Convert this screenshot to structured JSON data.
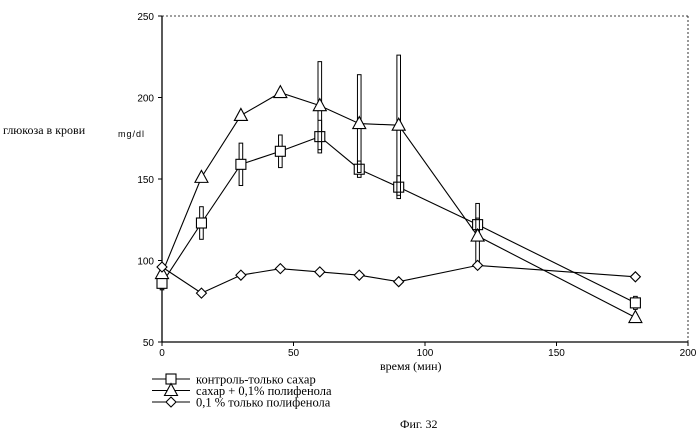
{
  "chart_data": {
    "type": "line",
    "title": "",
    "ylabel": "глюкоза в крови",
    "yunit": "mg/dl",
    "xlabel": "время (мин)",
    "xlim": [
      0,
      200
    ],
    "ylim": [
      50,
      250
    ],
    "xticks": [
      0,
      50,
      100,
      150,
      200
    ],
    "yticks": [
      50,
      100,
      150,
      200,
      250
    ],
    "grid": false,
    "legend_position": "bottom-left",
    "series": [
      {
        "name": "контроль-только сахар",
        "marker": "square",
        "x": [
          0,
          15,
          30,
          45,
          60,
          75,
          90,
          120,
          180
        ],
        "y": [
          86,
          123,
          159,
          167,
          176,
          156,
          145,
          122,
          74
        ],
        "err": [
          4,
          10,
          13,
          10,
          10,
          5,
          7,
          4,
          4
        ]
      },
      {
        "name": "сахар + 0,1% полифенола",
        "marker": "triangle",
        "x": [
          0,
          15,
          30,
          45,
          60,
          75,
          90,
          120,
          180
        ],
        "y": [
          92,
          151,
          189,
          203,
          195,
          184,
          183,
          115,
          65
        ],
        "err": [
          0,
          0,
          0,
          0,
          27,
          30,
          43,
          20,
          0
        ]
      },
      {
        "name": "0,1 % только полифенола",
        "marker": "diamond",
        "x": [
          0,
          15,
          30,
          45,
          60,
          75,
          90,
          120,
          180
        ],
        "y": [
          96,
          80,
          91,
          95,
          93,
          91,
          87,
          97,
          90
        ],
        "err": [
          0,
          0,
          0,
          0,
          0,
          0,
          0,
          0,
          0
        ]
      }
    ]
  },
  "caption": "Фиг. 32"
}
